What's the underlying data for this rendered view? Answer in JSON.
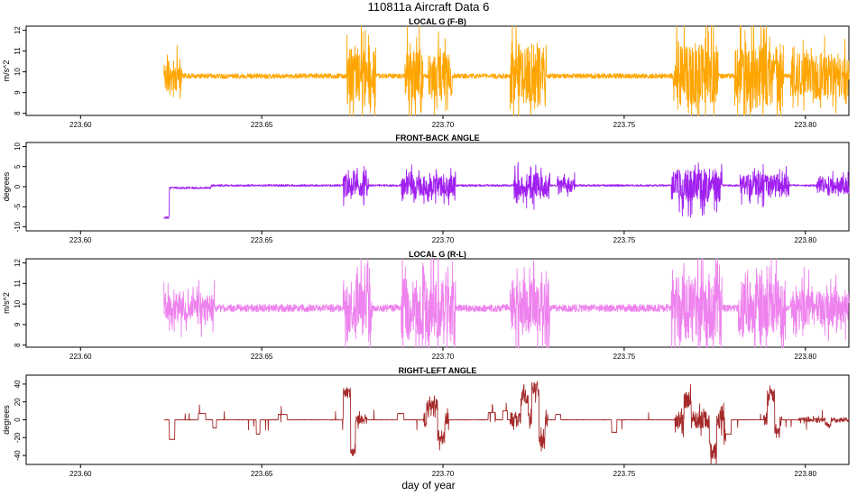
{
  "page": {
    "title": "110811a   Aircraft Data 6",
    "xlabel": "day of year"
  },
  "chart_data": [
    {
      "type": "line",
      "title": "LOCAL G (F-B)",
      "xlabel": "day of year",
      "ylabel": "m/s^2",
      "color": "#ffa500",
      "xlim": [
        223.585,
        223.812
      ],
      "ylim": [
        7.9,
        12.2
      ],
      "xticks": [
        "223.60",
        "223.65",
        "223.70",
        "223.75",
        "223.80"
      ],
      "yticks": [
        "8",
        "9",
        "10",
        "11",
        "12"
      ],
      "start_x": 223.623,
      "baseline": 9.8,
      "noise": 0.12,
      "spikes": 0.0,
      "bursts": [
        [
          223.623,
          223.628,
          0.9
        ],
        [
          223.6735,
          223.6815,
          1.7
        ],
        [
          223.6895,
          223.6945,
          1.6
        ],
        [
          223.696,
          223.7025,
          1.4
        ],
        [
          223.7185,
          223.7285,
          2.0
        ],
        [
          223.7635,
          223.772,
          2.1
        ],
        [
          223.772,
          223.776,
          1.7
        ],
        [
          223.7805,
          223.794,
          1.9
        ],
        [
          223.796,
          223.812,
          1.3
        ]
      ],
      "steps": [],
      "seed": 11
    },
    {
      "type": "line",
      "title": "FRONT-BACK ANGLE",
      "xlabel": "day of year",
      "ylabel": "degrees",
      "color": "#a020f0",
      "xlim": [
        223.585,
        223.812
      ],
      "ylim": [
        -11,
        11
      ],
      "xticks": [
        "223.60",
        "223.65",
        "223.70",
        "223.75",
        "223.80"
      ],
      "yticks": [
        "-10",
        "-5",
        "0",
        "5",
        "10"
      ],
      "start_x": 223.623,
      "baseline": 0.3,
      "noise": 0.25,
      "spikes": 0.0,
      "bursts": [
        [
          223.6725,
          223.6795,
          3.5
        ],
        [
          223.6885,
          223.7035,
          3.2
        ],
        [
          223.7195,
          223.7295,
          3.8
        ],
        [
          223.7315,
          223.7365,
          2.0
        ],
        [
          223.763,
          223.777,
          5.0
        ],
        [
          223.782,
          223.7955,
          3.6
        ],
        [
          223.803,
          223.812,
          2.8
        ]
      ],
      "steps": [
        [
          223.623,
          223.6245,
          -8.0
        ],
        [
          223.6245,
          223.636,
          -0.6
        ]
      ],
      "seed": 23
    },
    {
      "type": "line",
      "title": "LOCAL G (R-L)",
      "xlabel": "day of year",
      "ylabel": "m/s^2",
      "color": "#ee82ee",
      "xlim": [
        223.585,
        223.812
      ],
      "ylim": [
        7.9,
        12.2
      ],
      "xticks": [
        "223.60",
        "223.65",
        "223.70",
        "223.75",
        "223.80"
      ],
      "yticks": [
        "8",
        "9",
        "10",
        "11",
        "12"
      ],
      "start_x": 223.623,
      "baseline": 9.8,
      "noise": 0.18,
      "spikes": 0.0,
      "bursts": [
        [
          223.623,
          223.637,
          0.8
        ],
        [
          223.6725,
          223.6805,
          1.6
        ],
        [
          223.6885,
          223.7035,
          1.9
        ],
        [
          223.7185,
          223.7295,
          1.7
        ],
        [
          223.763,
          223.777,
          2.0
        ],
        [
          223.7815,
          223.7945,
          1.8
        ],
        [
          223.796,
          223.812,
          1.2
        ]
      ],
      "steps": [],
      "seed": 37
    },
    {
      "type": "line",
      "title": "RIGHT-LEFT ANGLE",
      "xlabel": "day of year",
      "ylabel": "degrees",
      "color": "#a52a2a",
      "xlim": [
        223.585,
        223.812
      ],
      "ylim": [
        -50,
        50
      ],
      "xticks": [
        "223.60",
        "223.65",
        "223.70",
        "223.75",
        "223.80"
      ],
      "yticks": [
        "-40",
        "-20",
        "0",
        "20",
        "40"
      ],
      "start_x": 223.623,
      "baseline": 0.0,
      "noise": 0.3,
      "spikes": 0.012,
      "bursts": [
        [
          223.6725,
          223.679,
          6.0
        ],
        [
          223.6945,
          223.7015,
          10.0
        ],
        [
          223.7185,
          223.729,
          10.0
        ],
        [
          223.764,
          223.778,
          12.0
        ],
        [
          223.7885,
          223.7935,
          8.0
        ],
        [
          223.798,
          223.812,
          2.5
        ]
      ],
      "steps": [
        [
          223.6245,
          223.626,
          -22.0
        ],
        [
          223.6325,
          223.6345,
          7.0
        ],
        [
          223.6365,
          223.6375,
          -9.0
        ],
        [
          223.6485,
          223.6495,
          -16.0
        ],
        [
          223.6545,
          223.657,
          6.0
        ],
        [
          223.6725,
          223.6745,
          30.0
        ],
        [
          223.6745,
          223.6758,
          -36.0
        ],
        [
          223.6875,
          223.6892,
          7.0
        ],
        [
          223.6955,
          223.6985,
          18.0
        ],
        [
          223.6985,
          223.7005,
          -20.0
        ],
        [
          223.7125,
          223.7145,
          8.0
        ],
        [
          223.7165,
          223.7178,
          10.0
        ],
        [
          223.7215,
          223.7235,
          26.0
        ],
        [
          223.7245,
          223.7265,
          34.0
        ],
        [
          223.7265,
          223.7282,
          -24.0
        ],
        [
          223.731,
          223.7325,
          6.0
        ],
        [
          223.7465,
          223.748,
          -14.0
        ],
        [
          223.7665,
          223.7685,
          22.0
        ],
        [
          223.7735,
          223.7755,
          -34.0
        ],
        [
          223.7775,
          223.7795,
          -16.0
        ],
        [
          223.7895,
          223.7915,
          28.0
        ],
        [
          223.7915,
          223.793,
          -14.0
        ],
        [
          223.8055,
          223.807,
          -6.0
        ]
      ],
      "seed": 53
    }
  ]
}
